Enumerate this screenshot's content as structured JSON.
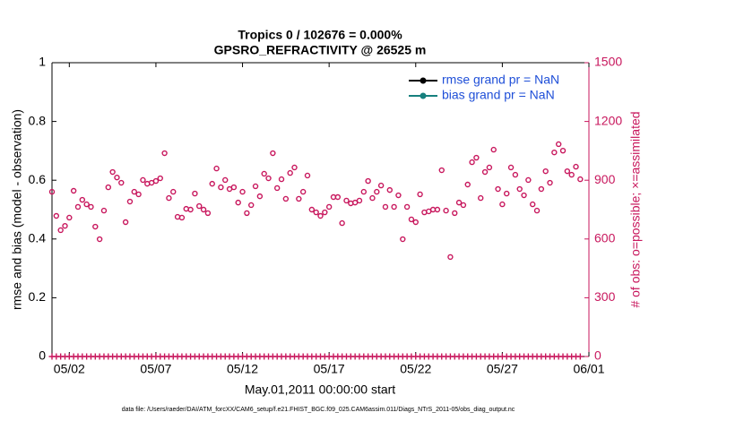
{
  "chart_data": {
    "type": "scatter",
    "title": [
      "Tropics 0 / 102676 = 0.000%",
      "GPSRO_REFRACTIVITY @ 26525 m"
    ],
    "ylabel": "rmse and bias (model - observation)",
    "y2label": "# of obs: o=possible; ×=assimilated",
    "xlabel": "May.01,2011 00:00:00 start",
    "footer": "data file: /Users/raeder/DAI/ATM_forcXX/CAM6_setup/f.e21.FHIST_BGC.f09_025.CAM6assim.011/Diags_NTrS_2011-05/obs_diag_output.nc",
    "xlim": [
      0,
      31
    ],
    "xticks": [
      {
        "value": 1,
        "label": "05/02"
      },
      {
        "value": 6,
        "label": "05/07"
      },
      {
        "value": 11,
        "label": "05/12"
      },
      {
        "value": 16,
        "label": "05/17"
      },
      {
        "value": 21,
        "label": "05/22"
      },
      {
        "value": 26,
        "label": "05/27"
      },
      {
        "value": 31,
        "label": "06/01"
      }
    ],
    "ylim": [
      0,
      1
    ],
    "yticks": [
      0,
      0.2,
      0.4,
      0.6,
      0.8,
      1
    ],
    "y2lim": [
      0,
      1500
    ],
    "y2ticks": [
      0,
      300,
      600,
      900,
      1200,
      1500
    ],
    "axis_color": "#000000",
    "axis2_color": "#c8175d",
    "legend": {
      "position": "upper-right",
      "text_color": "#1f4fd8",
      "entries": [
        {
          "label": "rmse grand pr = NaN",
          "color": "#000000"
        },
        {
          "label": "bias grand pr = NaN",
          "color": "#17807e"
        }
      ]
    },
    "x": [
      0,
      0.25,
      0.5,
      0.75,
      1,
      1.25,
      1.5,
      1.75,
      2,
      2.25,
      2.5,
      2.75,
      3,
      3.25,
      3.5,
      3.75,
      4,
      4.25,
      4.5,
      4.75,
      5,
      5.25,
      5.5,
      5.75,
      6,
      6.25,
      6.5,
      6.75,
      7,
      7.25,
      7.5,
      7.75,
      8,
      8.25,
      8.5,
      8.75,
      9,
      9.25,
      9.5,
      9.75,
      10,
      10.25,
      10.5,
      10.75,
      11,
      11.25,
      11.5,
      11.75,
      12,
      12.25,
      12.5,
      12.75,
      13,
      13.25,
      13.5,
      13.75,
      14,
      14.25,
      14.5,
      14.75,
      15,
      15.25,
      15.5,
      15.75,
      16,
      16.25,
      16.5,
      16.75,
      17,
      17.25,
      17.5,
      17.75,
      18,
      18.25,
      18.5,
      18.75,
      19,
      19.25,
      19.5,
      19.75,
      20,
      20.25,
      20.5,
      20.75,
      21,
      21.25,
      21.5,
      21.75,
      22,
      22.25,
      22.5,
      22.75,
      23,
      23.25,
      23.5,
      23.75,
      24,
      24.25,
      24.5,
      24.75,
      25,
      25.25,
      25.5,
      25.75,
      26,
      26.25,
      26.5,
      26.75,
      27,
      27.25,
      27.5,
      27.75,
      28,
      28.25,
      28.5,
      28.75,
      29,
      29.25,
      29.5,
      29.75,
      30,
      30.25,
      30.5
    ],
    "series": [
      {
        "marker": "o",
        "axis": "y2",
        "color": "#c8175d",
        "values": [
          841,
          718,
          645,
          667,
          709,
          846,
          764,
          800,
          777,
          764,
          663,
          599,
          745,
          864,
          942,
          914,
          887,
          686,
          791,
          841,
          828,
          901,
          882,
          887,
          896,
          910,
          1038,
          809,
          841,
          713,
          709,
          754,
          750,
          832,
          768,
          750,
          732,
          882,
          960,
          864,
          901,
          855,
          864,
          786,
          841,
          732,
          773,
          869,
          818,
          933,
          910,
          1038,
          860,
          905,
          805,
          937,
          965,
          805,
          841,
          924,
          750,
          736,
          718,
          736,
          764,
          814,
          814,
          681,
          796,
          782,
          786,
          796,
          841,
          896,
          809,
          841,
          873,
          764,
          850,
          764,
          823,
          599,
          764,
          700,
          686,
          828,
          736,
          741,
          750,
          750,
          951,
          745,
          508,
          732,
          786,
          773,
          878,
          992,
          1015,
          809,
          942,
          965,
          1056,
          855,
          777,
          832,
          965,
          928,
          855,
          823,
          901,
          777,
          745,
          855,
          946,
          887,
          1042,
          1084,
          1051,
          946,
          928,
          969,
          905
        ]
      },
      {
        "marker": "+",
        "axis": "y2",
        "color": "#c8175d",
        "values": [
          0,
          0,
          0,
          0,
          0,
          0,
          0,
          0,
          0,
          0,
          0,
          0,
          0,
          0,
          0,
          0,
          0,
          0,
          0,
          0,
          0,
          0,
          0,
          0,
          0,
          0,
          0,
          0,
          0,
          0,
          0,
          0,
          0,
          0,
          0,
          0,
          0,
          0,
          0,
          0,
          0,
          0,
          0,
          0,
          0,
          0,
          0,
          0,
          0,
          0,
          0,
          0,
          0,
          0,
          0,
          0,
          0,
          0,
          0,
          0,
          0,
          0,
          0,
          0,
          0,
          0,
          0,
          0,
          0,
          0,
          0,
          0,
          0,
          0,
          0,
          0,
          0,
          0,
          0,
          0,
          0,
          0,
          0,
          0,
          0,
          0,
          0,
          0,
          0,
          0,
          0,
          0,
          0,
          0,
          0,
          0,
          0,
          0,
          0,
          0,
          0,
          0,
          0,
          0,
          0,
          0,
          0,
          0,
          0,
          0,
          0,
          0,
          0,
          0,
          0,
          0,
          0,
          0,
          0,
          0,
          0,
          0,
          0
        ]
      }
    ]
  }
}
